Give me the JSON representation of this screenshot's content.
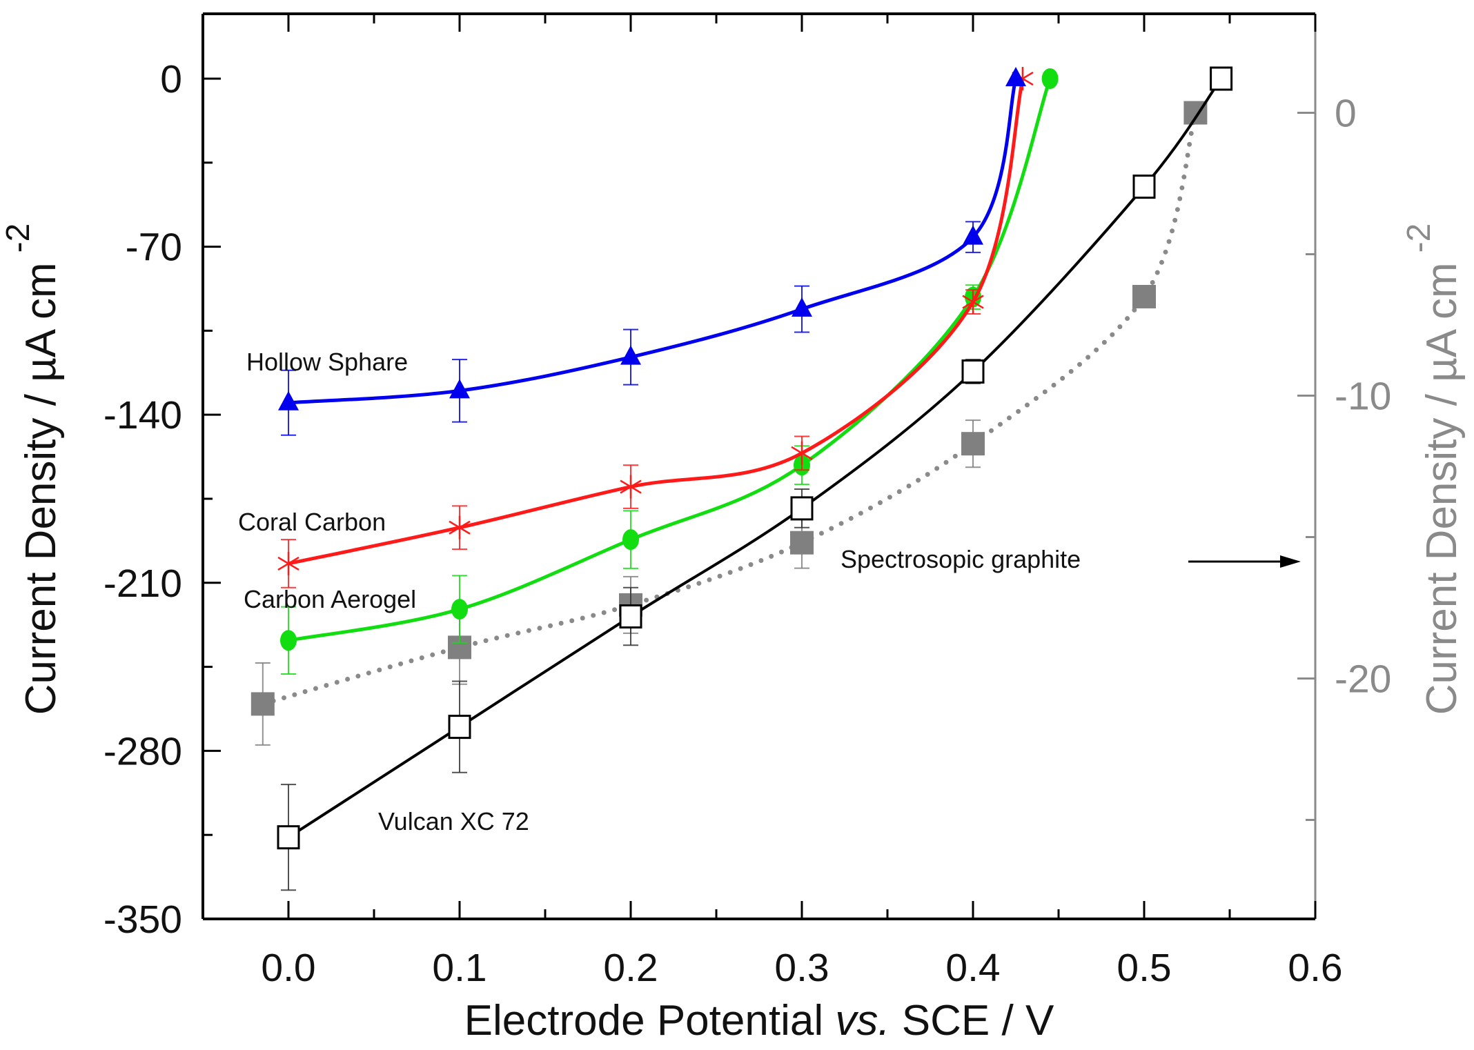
{
  "chart_data": {
    "type": "line",
    "xlabel": {
      "pre": "Electrode Potential ",
      "italic": "vs.",
      "post": " SCE / V"
    },
    "ylabel": {
      "main": "Current Density / µA cm",
      "sup": "-2"
    },
    "y2label": {
      "main": "Current Density / µA cm",
      "sup": "-2"
    },
    "xlim": [
      -0.05,
      0.6
    ],
    "ylim": [
      -350,
      27
    ],
    "y2lim": [
      -28.5,
      3.5
    ],
    "xticks": [
      "0.0",
      "0.1",
      "0.2",
      "0.3",
      "0.4",
      "0.5",
      "0.6"
    ],
    "xtick_values": [
      0,
      0.1,
      0.2,
      0.3,
      0.4,
      0.5,
      0.6
    ],
    "yticks": [
      "0",
      "-70",
      "-140",
      "-210",
      "-280",
      "-350"
    ],
    "ytick_values": [
      0,
      -70,
      -140,
      -210,
      -280,
      -350
    ],
    "y2ticks": [
      "0",
      "-10",
      "-20"
    ],
    "y2tick_values": [
      0,
      -10,
      -20
    ],
    "grid": false,
    "axis_color_right": "#8a8a8a",
    "series": [
      {
        "name": "Hollow Sphare",
        "axis": "left",
        "color": "#0000ee",
        "marker": "triangle-filled",
        "line": "solid",
        "x": [
          0,
          0.1,
          0.2,
          0.3,
          0.4,
          0.425
        ],
        "y": [
          -135,
          -130,
          -116,
          -96,
          -66,
          0
        ],
        "err": [
          13.5,
          13,
          11.5,
          9.6,
          6.4,
          0
        ]
      },
      {
        "name": "Coral Carbon",
        "axis": "left",
        "color": "#ff1a1a",
        "marker": "asterisk",
        "line": "solid",
        "x": [
          0,
          0.1,
          0.2,
          0.3,
          0.4,
          0.429
        ],
        "y": [
          -202,
          -187,
          -170,
          -156,
          -93,
          0
        ],
        "err": [
          10,
          9,
          9,
          7,
          5,
          0
        ]
      },
      {
        "name": "Carbon Aerogel",
        "axis": "left",
        "color": "#11dd11",
        "marker": "circle-filled",
        "line": "solid",
        "x": [
          0,
          0.1,
          0.2,
          0.3,
          0.4,
          0.445
        ],
        "y": [
          -234,
          -221,
          -192,
          -161,
          -91,
          0
        ],
        "err": [
          14,
          14,
          12,
          8,
          5,
          0
        ]
      },
      {
        "name": "Vulcan XC 72",
        "axis": "left",
        "color": "#000000",
        "marker": "square-open",
        "line": "solid",
        "x": [
          0,
          0.1,
          0.2,
          0.3,
          0.4,
          0.5,
          0.545
        ],
        "y": [
          -316,
          -270,
          -224,
          -179,
          -122,
          -45,
          0
        ],
        "err": [
          22,
          19,
          12,
          8,
          5,
          3,
          0
        ]
      },
      {
        "name": "Spectrosopic graphite",
        "axis": "right",
        "color": "#808080",
        "marker": "square-filled",
        "line": "dotted",
        "x": [
          -0.015,
          0.1,
          0.2,
          0.3,
          0.4,
          0.5,
          0.53
        ],
        "y": [
          -20.9,
          -18.9,
          -17.4,
          -15.2,
          -11.7,
          -6.5,
          0
        ],
        "err": [
          1.45,
          1.3,
          1.0,
          0.9,
          0.83,
          0,
          0
        ]
      }
    ]
  }
}
